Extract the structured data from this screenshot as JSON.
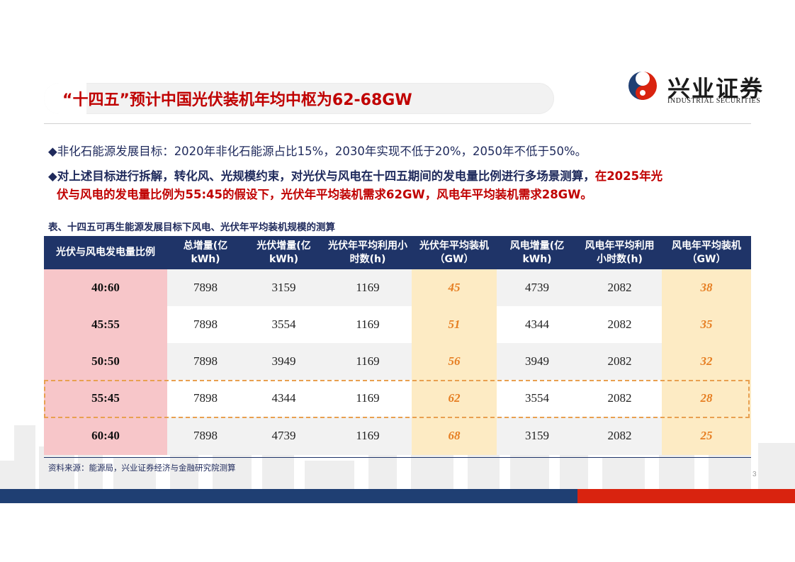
{
  "title": "“十四五”预计中国光伏装机年均中枢为62-68GW",
  "logo": {
    "name_cn": "兴业证券",
    "name_en": "INDUSTRIAL SECURITIES"
  },
  "bullets": {
    "b1": "◆非化石能源发展目标：2020年非化石能源占比15%，2030年实现不低于20%，2050年不低于50%。",
    "b2_main": "◆对上述目标进行拆解，转化风、光规模约束，对光伏与风电在十四五期间的发电量比例进行多场景测算，",
    "b2_red_tail": "在2025年光",
    "b2_line2": "伏与风电的发电量比例为55:45的假设下，光伏年平均装机需求62GW，风电年平均装机需求28GW。"
  },
  "table": {
    "caption": "表、十四五可再生能源发展目标下风电、光伏年平均装机规模的测算",
    "headers": [
      "光伏与风电发电量比例",
      "总增量(亿kWh)",
      "光伏增量(亿kWh)",
      "光伏年平均利用小时数(h)",
      "光伏年平均装机（GW）",
      "风电增量(亿kWh)",
      "风电年平均利用小时数(h)",
      "风电年平均装机（GW）"
    ],
    "rows": [
      [
        "40:60",
        "7898",
        "3159",
        "1169",
        "45",
        "4739",
        "2082",
        "38"
      ],
      [
        "45:55",
        "7898",
        "3554",
        "1169",
        "51",
        "4344",
        "2082",
        "35"
      ],
      [
        "50:50",
        "7898",
        "3949",
        "1169",
        "56",
        "3949",
        "2082",
        "32"
      ],
      [
        "55:45",
        "7898",
        "4344",
        "1169",
        "62",
        "3554",
        "2082",
        "28"
      ],
      [
        "60:40",
        "7898",
        "4739",
        "1169",
        "68",
        "3159",
        "2082",
        "25"
      ]
    ]
  },
  "source": "资料来源：能源局，兴业证券经济与金融研究院测算",
  "page_number": "3",
  "colors": {
    "title_red": "#c00000",
    "header_navy": "#1f3468",
    "ratio_pink": "#f7c6c9",
    "highlight_yellow": "#fdebc4",
    "highlight_orange": "#e67e22",
    "footer_blue": "#1f3f73",
    "footer_red": "#d9230f"
  }
}
